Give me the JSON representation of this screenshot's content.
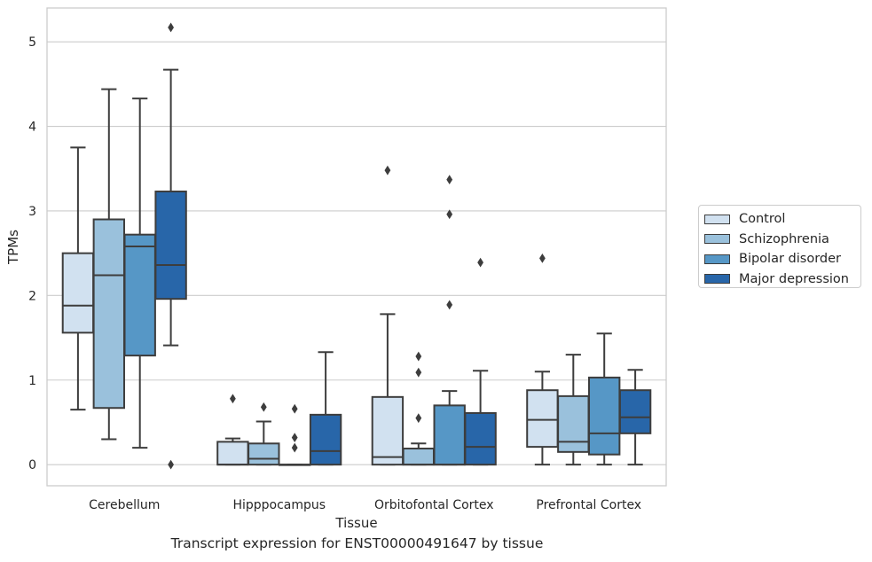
{
  "caption": "Transcript expression for ENST00000491647 by tissue",
  "chart_data": {
    "type": "boxplot",
    "xlabel": "Tissue",
    "ylabel": "TPMs",
    "ylim": [
      -0.25,
      5.4
    ],
    "yticks": [
      0,
      1,
      2,
      3,
      4,
      5
    ],
    "grid": "horizontal",
    "legend_position": "right",
    "categories": [
      "Cerebellum",
      "Hipppocampus",
      "Orbitofontal Cortex",
      "Prefrontal Cortex"
    ],
    "series": [
      {
        "name": "Control",
        "color": "#d1e1f0",
        "boxes": [
          {
            "whislo": 0.65,
            "q1": 1.56,
            "med": 1.88,
            "q3": 2.5,
            "whishi": 3.75,
            "fliers": []
          },
          {
            "whislo": 0.0,
            "q1": 0.0,
            "med": 0.0,
            "q3": 0.27,
            "whishi": 0.31,
            "fliers": [
              0.78
            ]
          },
          {
            "whislo": 0.0,
            "q1": 0.0,
            "med": 0.09,
            "q3": 0.8,
            "whishi": 1.78,
            "fliers": [
              3.48
            ]
          },
          {
            "whislo": 0.0,
            "q1": 0.21,
            "med": 0.53,
            "q3": 0.88,
            "whishi": 1.1,
            "fliers": [
              2.44
            ]
          }
        ]
      },
      {
        "name": "Schizophrenia",
        "color": "#9ac1dc",
        "boxes": [
          {
            "whislo": 0.3,
            "q1": 0.67,
            "med": 2.24,
            "q3": 2.9,
            "whishi": 4.44,
            "fliers": []
          },
          {
            "whislo": 0.0,
            "q1": 0.0,
            "med": 0.07,
            "q3": 0.25,
            "whishi": 0.51,
            "fliers": [
              0.68
            ]
          },
          {
            "whislo": 0.0,
            "q1": 0.0,
            "med": 0.0,
            "q3": 0.19,
            "whishi": 0.25,
            "fliers": [
              0.55,
              1.09,
              1.28
            ]
          },
          {
            "whislo": 0.0,
            "q1": 0.15,
            "med": 0.27,
            "q3": 0.81,
            "whishi": 1.3,
            "fliers": []
          }
        ]
      },
      {
        "name": "Bipolar disorder",
        "color": "#5697c6",
        "boxes": [
          {
            "whislo": 0.2,
            "q1": 1.29,
            "med": 2.58,
            "q3": 2.72,
            "whishi": 4.33,
            "fliers": []
          },
          {
            "whislo": 0.0,
            "q1": 0.0,
            "med": 0.0,
            "q3": 0.0,
            "whishi": 0.0,
            "fliers": [
              0.2,
              0.32,
              0.66
            ]
          },
          {
            "whislo": 0.0,
            "q1": 0.0,
            "med": 0.0,
            "q3": 0.7,
            "whishi": 0.87,
            "fliers": [
              1.89,
              2.96,
              3.37
            ]
          },
          {
            "whislo": 0.0,
            "q1": 0.12,
            "med": 0.37,
            "q3": 1.03,
            "whishi": 1.55,
            "fliers": []
          }
        ]
      },
      {
        "name": "Major depression",
        "color": "#2866a9",
        "boxes": [
          {
            "whislo": 1.41,
            "q1": 1.96,
            "med": 2.36,
            "q3": 3.23,
            "whishi": 4.67,
            "fliers": [
              0.0,
              5.17
            ]
          },
          {
            "whislo": 0.0,
            "q1": 0.0,
            "med": 0.16,
            "q3": 0.59,
            "whishi": 1.33,
            "fliers": []
          },
          {
            "whislo": 0.0,
            "q1": 0.0,
            "med": 0.21,
            "q3": 0.61,
            "whishi": 1.11,
            "fliers": [
              2.39
            ]
          },
          {
            "whislo": 0.0,
            "q1": 0.37,
            "med": 0.56,
            "q3": 0.88,
            "whishi": 1.12,
            "fliers": []
          }
        ]
      }
    ]
  }
}
